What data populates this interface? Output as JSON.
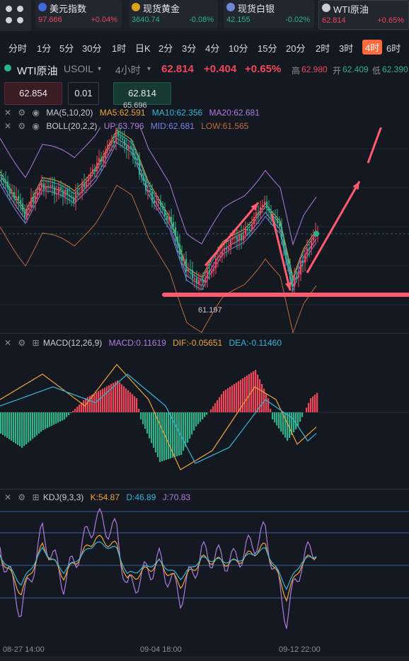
{
  "tickers": [
    {
      "name": "美元指数",
      "price": "97.666",
      "change": "+0.04%",
      "dir": "up",
      "flag": "#3f6ad8"
    },
    {
      "name": "现货黄金",
      "price": "3640.74",
      "change": "-0.08%",
      "dir": "dn",
      "flag": "#d9a21b"
    },
    {
      "name": "现货白银",
      "price": "42.155",
      "change": "-0.02%",
      "dir": "dn",
      "flag": "#6f86d6"
    },
    {
      "name": "WTI原油",
      "price": "62.814",
      "change": "+0.65%",
      "dir": "up",
      "flag": "#c9ccd4"
    }
  ],
  "timeframes": [
    "分时",
    "1分",
    "5分",
    "30分",
    "1时",
    "日K",
    "2分",
    "3分",
    "4分",
    "10分",
    "15分",
    "20分",
    "2时",
    "3时",
    "4时",
    "6时"
  ],
  "active_timeframe": "4时",
  "symbol": {
    "name": "WTI原油",
    "code": "USOIL",
    "period": "4小时",
    "price": "62.814",
    "change": "+0.404",
    "pct": "+0.65%",
    "high_label": "高",
    "high": "62.980",
    "open_label": "开",
    "open": "62.409",
    "low_label": "低",
    "low": "62.390"
  },
  "order": {
    "sell_price": "62.854",
    "lot": "0.01",
    "buy_price": "62.814"
  },
  "ma": {
    "label": "MA(5,10,20)",
    "ma5": "MA5:62.591",
    "ma10": "MA10:62.356",
    "ma20": "MA20:62.681"
  },
  "boll": {
    "label": "BOLL(20,2,2)",
    "up": "UP:63.796",
    "mid": "MID:62.681",
    "low": "LOW:61.565"
  },
  "price_marks": {
    "high": "65.696",
    "low": "61.197"
  },
  "macd": {
    "label": "MACD(12,26,9)",
    "macd": "MACD:0.11619",
    "dif": "DIF:-0.05651",
    "dea": "DEA:-0.11460"
  },
  "kdj": {
    "label": "KDJ(9,3,3)",
    "k": "K:54.87",
    "d": "D:46.89",
    "j": "J:70.83"
  },
  "x_labels": [
    "08-27 14:00",
    "09-04 18:00",
    "09-12 22:00"
  ],
  "colors": {
    "up": "#f0465a",
    "down": "#2bb38a",
    "ma5": "#f0a33a",
    "ma10": "#35b7d8",
    "ma20": "#b07be0",
    "boll_up": "#b07be0",
    "boll_mid": "#7a82e8",
    "boll_low": "#c06a3a",
    "annotation": "#ff5a6e"
  }
}
